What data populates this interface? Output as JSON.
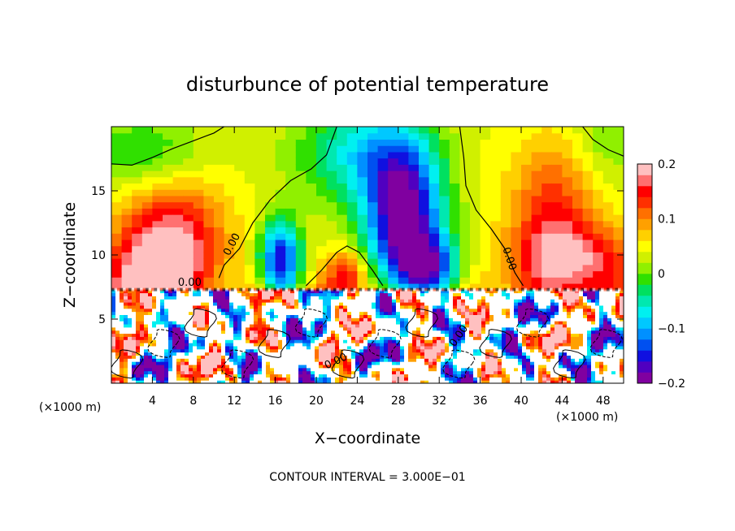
{
  "chart_data": {
    "type": "heatmap",
    "title": "disturbunce of potential temperature",
    "xlabel": "X−coordinate",
    "ylabel": "Z−coordinate",
    "x_unit": "(×1000 m)",
    "z_unit": "(×1000 m)",
    "xlim": [
      0,
      50
    ],
    "ylim": [
      0,
      20
    ],
    "x_ticks": [
      4,
      8,
      12,
      16,
      20,
      24,
      28,
      32,
      36,
      40,
      44,
      48
    ],
    "y_ticks": [
      5,
      10,
      15
    ],
    "colorbar": {
      "min": -0.2,
      "max": 0.2,
      "tick_values": [
        0.2,
        0.1,
        0,
        -0.1,
        -0.2
      ],
      "tick_labels": [
        "0.2",
        "0.1",
        "0",
        "−0.1",
        "−0.2"
      ],
      "colors": [
        "#8000a0",
        "#5000c0",
        "#1010e0",
        "#0050f0",
        "#0090ff",
        "#00c8ff",
        "#00f0f0",
        "#00e8b0",
        "#00e060",
        "#30e000",
        "#90f000",
        "#d0f000",
        "#ffff00",
        "#ffd000",
        "#ffa000",
        "#ff7000",
        "#ff3000",
        "#ff0000",
        "#ff7070",
        "#ffc0c0"
      ]
    },
    "contour_labels": [
      "0.00",
      "0.00",
      "0.00",
      "0.00",
      "0.00"
    ],
    "contour_interval_text": "CONTOUR INTERVAL = 3.000E−01",
    "upper_layer_description": {
      "boundary_z": 7.3,
      "warm_anomalies_x": [
        4,
        14,
        23,
        42,
        47
      ],
      "cold_anomalies_x": [
        16,
        28,
        31
      ]
    },
    "lower_layer": "turbulent mixed layer below ~7.3 km with values from -0.2 to 0.2"
  }
}
